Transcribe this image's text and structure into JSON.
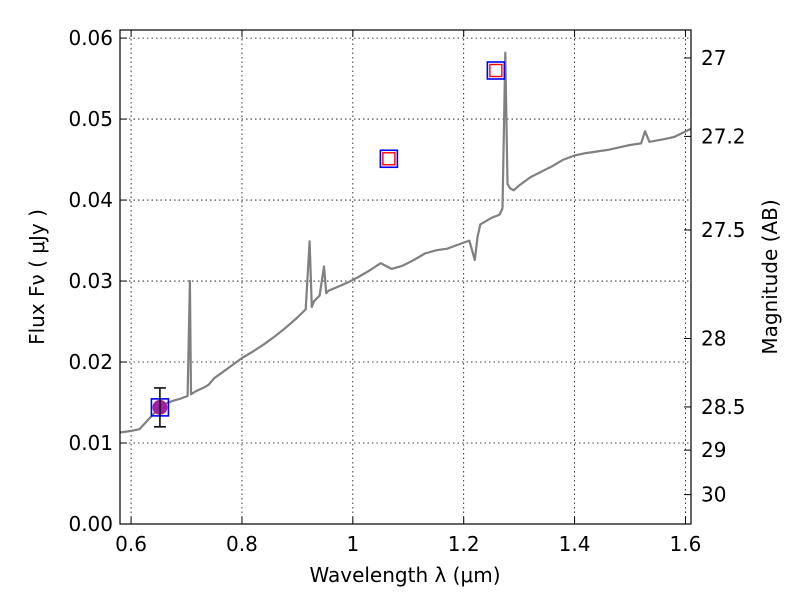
{
  "chart_data": {
    "type": "line",
    "title": "",
    "xlabel": "Wavelength  λ (μm)",
    "ylabel": "Flux  Fν  ( μJy )",
    "ylabel_right": "Magnitude (AB)",
    "xlim": [
      0.58,
      1.61
    ],
    "ylim": [
      0.0,
      0.061
    ],
    "grid": true,
    "x_ticks": [
      0.6,
      0.8,
      1.0,
      1.2,
      1.4,
      1.6
    ],
    "x_tick_labels": [
      "0.6",
      "0.8",
      "1",
      "1.2",
      "1.4",
      "1.6"
    ],
    "y_ticks": [
      0.0,
      0.01,
      0.02,
      0.03,
      0.04,
      0.05,
      0.06
    ],
    "y_tick_labels": [
      "0.00",
      "0.01",
      "0.02",
      "0.03",
      "0.04",
      "0.05",
      "0.06"
    ],
    "right_ticks": [
      27,
      27.2,
      27.5,
      28,
      28.5,
      29,
      30
    ],
    "right_tick_labels": [
      "27",
      "27.2",
      "27.5",
      "28",
      "28.5",
      "29",
      "30"
    ],
    "series": [
      {
        "type": "line",
        "color": "#808080",
        "x": [
          0.58,
          0.6,
          0.615,
          0.63,
          0.645,
          0.66,
          0.675,
          0.69,
          0.702,
          0.706,
          0.708,
          0.712,
          0.72,
          0.73,
          0.74,
          0.75,
          0.76,
          0.78,
          0.8,
          0.82,
          0.84,
          0.86,
          0.88,
          0.9,
          0.915,
          0.922,
          0.926,
          0.93,
          0.94,
          0.948,
          0.952,
          0.956,
          0.97,
          0.99,
          1.01,
          1.03,
          1.05,
          1.07,
          1.09,
          1.11,
          1.13,
          1.15,
          1.17,
          1.19,
          1.21,
          1.22,
          1.225,
          1.23,
          1.25,
          1.265,
          1.27,
          1.275,
          1.279,
          1.283,
          1.29,
          1.3,
          1.32,
          1.34,
          1.36,
          1.38,
          1.4,
          1.42,
          1.44,
          1.46,
          1.48,
          1.5,
          1.52,
          1.527,
          1.535,
          1.56,
          1.58,
          1.61
        ],
        "y": [
          0.0113,
          0.0115,
          0.0117,
          0.0128,
          0.0139,
          0.0148,
          0.0152,
          0.0155,
          0.0158,
          0.03,
          0.016,
          0.0162,
          0.0165,
          0.0168,
          0.0172,
          0.018,
          0.0185,
          0.0195,
          0.0205,
          0.0213,
          0.0222,
          0.0232,
          0.0243,
          0.0255,
          0.0265,
          0.0349,
          0.0268,
          0.0275,
          0.0282,
          0.0318,
          0.0285,
          0.0288,
          0.0292,
          0.0298,
          0.0305,
          0.0313,
          0.0322,
          0.0315,
          0.0319,
          0.0326,
          0.0334,
          0.0338,
          0.034,
          0.0345,
          0.035,
          0.0326,
          0.0355,
          0.037,
          0.0378,
          0.0382,
          0.039,
          0.0582,
          0.042,
          0.0415,
          0.0412,
          0.0418,
          0.0428,
          0.0435,
          0.0442,
          0.045,
          0.0455,
          0.0458,
          0.046,
          0.0462,
          0.0465,
          0.0468,
          0.047,
          0.0485,
          0.0472,
          0.0475,
          0.0478,
          0.0488
        ]
      },
      {
        "type": "scatter",
        "marker": "open-square",
        "edge_color": "#0000ff",
        "points": [
          {
            "x": 0.652,
            "y": 0.0144
          },
          {
            "x": 1.065,
            "y": 0.0451
          },
          {
            "x": 1.258,
            "y": 0.056
          }
        ]
      },
      {
        "type": "scatter",
        "marker": "open-square-small",
        "edge_color": "#ff0000",
        "points": [
          {
            "x": 1.065,
            "y": 0.0451
          },
          {
            "x": 1.258,
            "y": 0.056
          }
        ]
      },
      {
        "type": "scatter",
        "marker": "filled-circle",
        "color": "#a020a0",
        "points": [
          {
            "x": 0.652,
            "y": 0.0144
          }
        ]
      },
      {
        "type": "errorbar",
        "color": "#000000",
        "x": 0.652,
        "y_low": 0.012,
        "y_high": 0.0168
      }
    ]
  }
}
